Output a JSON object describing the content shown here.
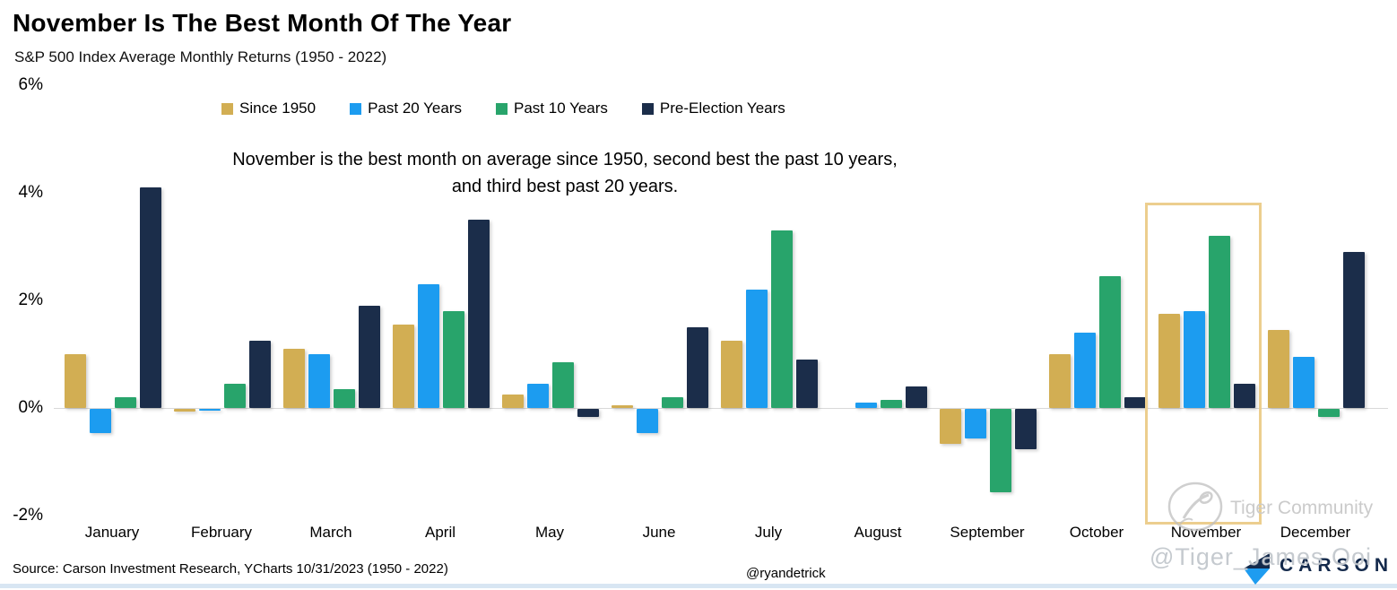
{
  "header": {
    "title": "November Is The Best Month Of The Year",
    "subtitle": "S&P 500 Index Average Monthly Returns (1950 - 2022)"
  },
  "chart_data": {
    "type": "bar",
    "title": "November Is The Best Month Of The Year",
    "subtitle": "S&P 500 Index Average Monthly Returns (1950 - 2022)",
    "categories": [
      "January",
      "February",
      "March",
      "April",
      "May",
      "June",
      "July",
      "August",
      "September",
      "October",
      "November",
      "December"
    ],
    "series": [
      {
        "name": "Since 1950",
        "color": "#D2AE53",
        "values": [
          1.0,
          -0.05,
          1.1,
          1.55,
          0.25,
          0.05,
          1.25,
          0.0,
          -0.65,
          1.0,
          1.75,
          1.45
        ]
      },
      {
        "name": "Past 20 Years",
        "color": "#1C9CF0",
        "values": [
          -0.45,
          -0.02,
          1.0,
          2.3,
          0.45,
          -0.45,
          2.2,
          0.1,
          -0.55,
          1.4,
          1.8,
          0.95
        ]
      },
      {
        "name": "Past 10 Years",
        "color": "#28A46B",
        "values": [
          0.2,
          0.45,
          0.35,
          1.8,
          0.85,
          0.2,
          3.3,
          0.15,
          -1.55,
          2.45,
          3.2,
          -0.15
        ]
      },
      {
        "name": "Pre-Election Years",
        "color": "#1B2D4A",
        "values": [
          4.1,
          1.25,
          1.9,
          3.5,
          -0.15,
          1.5,
          0.9,
          0.4,
          -0.75,
          0.2,
          0.45,
          2.9
        ]
      }
    ],
    "yticks": [
      {
        "label": "6%",
        "value": 6
      },
      {
        "label": "4%",
        "value": 4
      },
      {
        "label": "2%",
        "value": 2
      },
      {
        "label": "0%",
        "value": 0
      },
      {
        "label": "-2%",
        "value": -2
      }
    ],
    "ylim": [
      -2,
      6
    ],
    "grid": "zero-line-only",
    "legend_position": "top-center",
    "annotation": "November is the best month on average since 1950, second best the past 10 years, and third best past 20 years.",
    "highlighted_category": "November"
  },
  "footer": {
    "source": "Source: Carson Investment Research, YCharts 10/31/2023 (1950 - 2022)",
    "author_handle": "@ryandetrick"
  },
  "watermarks": {
    "community": "Tiger Community",
    "user_handle": "@Tiger_James Ooi"
  },
  "brand": {
    "name": "CARSON"
  },
  "colors": {
    "highlight_border": "#ecce8e",
    "zero_line": "#d9d9d9",
    "brand_navy": "#13294B",
    "brand_blue": "#1E9CF0",
    "watermark_gray": "#cbcbcb",
    "bottom_strip": "#d8e6f3"
  }
}
